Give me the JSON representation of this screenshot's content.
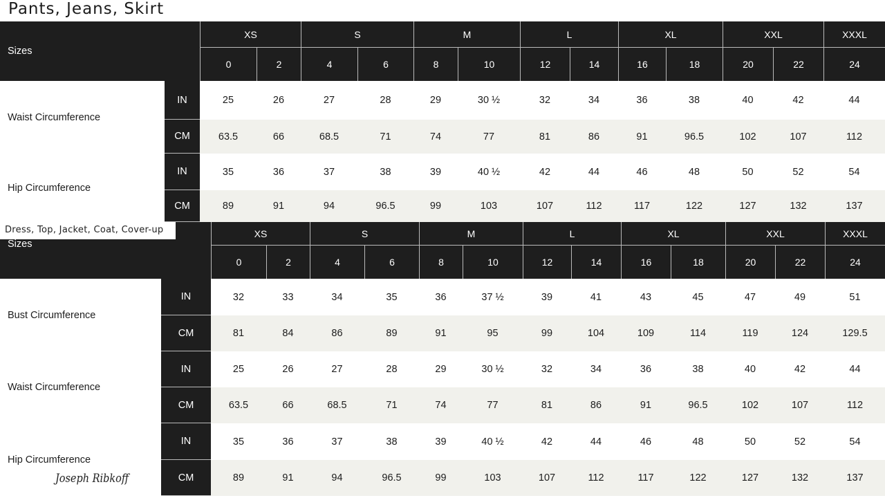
{
  "tables": [
    {
      "title": "Pants, Jeans, Skirt",
      "sizes_label": "Sizes",
      "size_groups": [
        "XS",
        "S",
        "M",
        "L",
        "XL",
        "XXL",
        "XXXL"
      ],
      "size_numbers": [
        "0",
        "2",
        "4",
        "6",
        "8",
        "10",
        "12",
        "14",
        "16",
        "18",
        "20",
        "22",
        "24"
      ],
      "measurements": [
        {
          "label": "Waist Circumference",
          "rows": [
            {
              "unit": "IN",
              "values": [
                "25",
                "26",
                "27",
                "28",
                "29",
                "30 ½",
                "32",
                "34",
                "36",
                "38",
                "40",
                "42",
                "44"
              ]
            },
            {
              "unit": "CM",
              "values": [
                "63.5",
                "66",
                "68.5",
                "71",
                "74",
                "77",
                "81",
                "86",
                "91",
                "96.5",
                "102",
                "107",
                "112"
              ]
            }
          ]
        },
        {
          "label": "Hip Circumference",
          "rows": [
            {
              "unit": "IN",
              "values": [
                "35",
                "36",
                "37",
                "38",
                "39",
                "40 ½",
                "42",
                "44",
                "46",
                "48",
                "50",
                "52",
                "54"
              ]
            },
            {
              "unit": "CM",
              "values": [
                "89",
                "91",
                "94",
                "96.5",
                "99",
                "103",
                "107",
                "112",
                "117",
                "122",
                "127",
                "132",
                "137"
              ]
            }
          ]
        }
      ]
    },
    {
      "title": "Dress, Top, Jacket, Coat, Cover-up",
      "sizes_label": "Sizes",
      "size_groups": [
        "XS",
        "S",
        "M",
        "L",
        "XL",
        "XXL",
        "XXXL"
      ],
      "size_numbers": [
        "0",
        "2",
        "4",
        "6",
        "8",
        "10",
        "12",
        "14",
        "16",
        "18",
        "20",
        "22",
        "24"
      ],
      "measurements": [
        {
          "label": "Bust Circumference",
          "rows": [
            {
              "unit": "IN",
              "values": [
                "32",
                "33",
                "34",
                "35",
                "36",
                "37 ½",
                "39",
                "41",
                "43",
                "45",
                "47",
                "49",
                "51"
              ]
            },
            {
              "unit": "CM",
              "values": [
                "81",
                "84",
                "86",
                "89",
                "91",
                "95",
                "99",
                "104",
                "109",
                "114",
                "119",
                "124",
                "129.5"
              ]
            }
          ]
        },
        {
          "label": "Waist Circumference",
          "rows": [
            {
              "unit": "IN",
              "values": [
                "25",
                "26",
                "27",
                "28",
                "29",
                "30 ½",
                "32",
                "34",
                "36",
                "38",
                "40",
                "42",
                "44"
              ]
            },
            {
              "unit": "CM",
              "values": [
                "63.5",
                "66",
                "68.5",
                "71",
                "74",
                "77",
                "81",
                "86",
                "91",
                "96.5",
                "102",
                "107",
                "112"
              ]
            }
          ]
        },
        {
          "label": "Hip Circumference",
          "rows": [
            {
              "unit": "IN",
              "values": [
                "35",
                "36",
                "37",
                "38",
                "39",
                "40 ½",
                "42",
                "44",
                "46",
                "48",
                "50",
                "52",
                "54"
              ]
            },
            {
              "unit": "CM",
              "values": [
                "89",
                "91",
                "94",
                "96.5",
                "99",
                "103",
                "107",
                "112",
                "117",
                "122",
                "127",
                "132",
                "137"
              ]
            }
          ]
        }
      ]
    }
  ],
  "brand": "Joseph Ribkoff"
}
